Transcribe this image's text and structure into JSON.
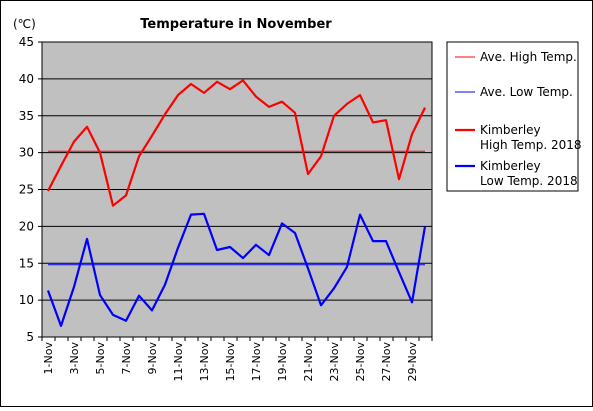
{
  "chart_data": {
    "type": "line",
    "title": "Temperature in November",
    "unit_label": "(℃)",
    "ylim": [
      5,
      45
    ],
    "y_ticks": [
      5,
      10,
      15,
      20,
      25,
      30,
      35,
      40,
      45
    ],
    "grid": true,
    "legend_position": "right",
    "categories": [
      "1-Nov",
      "2-Nov",
      "3-Nov",
      "4-Nov",
      "5-Nov",
      "6-Nov",
      "7-Nov",
      "8-Nov",
      "9-Nov",
      "10-Nov",
      "11-Nov",
      "12-Nov",
      "13-Nov",
      "14-Nov",
      "15-Nov",
      "16-Nov",
      "17-Nov",
      "18-Nov",
      "19-Nov",
      "20-Nov",
      "21-Nov",
      "22-Nov",
      "23-Nov",
      "24-Nov",
      "25-Nov",
      "26-Nov",
      "27-Nov",
      "28-Nov",
      "29-Nov",
      "30-Nov"
    ],
    "x_tick_labels": [
      "1-Nov",
      "3-Nov",
      "5-Nov",
      "7-Nov",
      "9-Nov",
      "11-Nov",
      "13-Nov",
      "15-Nov",
      "17-Nov",
      "19-Nov",
      "21-Nov",
      "23-Nov",
      "25-Nov",
      "27-Nov",
      "29-Nov"
    ],
    "series": [
      {
        "name": "Ave. High Temp.",
        "color": "#ff0000",
        "width": "thin",
        "values": [
          30.2,
          30.2,
          30.2,
          30.2,
          30.2,
          30.2,
          30.2,
          30.2,
          30.2,
          30.2,
          30.2,
          30.2,
          30.2,
          30.2,
          30.2,
          30.2,
          30.2,
          30.2,
          30.2,
          30.2,
          30.2,
          30.2,
          30.2,
          30.2,
          30.2,
          30.2,
          30.2,
          30.2,
          30.2,
          30.2
        ]
      },
      {
        "name": "Ave. Low Temp.",
        "color": "#0000ff",
        "width": "thin",
        "values": [
          14.8,
          14.8,
          14.8,
          14.8,
          14.8,
          14.8,
          14.8,
          14.8,
          14.8,
          14.8,
          14.8,
          14.8,
          14.8,
          14.8,
          14.8,
          14.8,
          14.8,
          14.8,
          14.8,
          14.8,
          14.8,
          14.8,
          14.8,
          14.8,
          14.8,
          14.8,
          14.8,
          14.8,
          14.8,
          14.8
        ]
      },
      {
        "name": "Kimberley High Temp. 2018",
        "legend_lines": [
          "Kimberley",
          "High Temp. 2018"
        ],
        "color": "#ff0000",
        "width": "thick",
        "values": [
          24.8,
          28.2,
          31.5,
          33.5,
          30.0,
          22.8,
          24.2,
          29.5,
          32.3,
          35.2,
          37.8,
          39.3,
          38.1,
          39.6,
          38.6,
          39.8,
          37.6,
          36.2,
          36.9,
          35.4,
          27.1,
          29.5,
          35.0,
          36.6,
          37.8,
          34.1,
          34.4,
          26.4,
          32.5,
          36.1
        ]
      },
      {
        "name": "Kimberley Low Temp. 2018",
        "legend_lines": [
          "Kimberley",
          "Low Temp. 2018"
        ],
        "color": "#0000ff",
        "width": "thick",
        "values": [
          11.3,
          6.5,
          11.8,
          18.3,
          10.7,
          8.0,
          7.2,
          10.6,
          8.6,
          12.1,
          17.1,
          21.6,
          21.7,
          16.8,
          17.2,
          15.7,
          17.5,
          16.1,
          20.4,
          19.1,
          14.3,
          9.3,
          11.6,
          14.5,
          21.6,
          18.0,
          18.0,
          13.8,
          9.7,
          20.0
        ]
      }
    ]
  }
}
